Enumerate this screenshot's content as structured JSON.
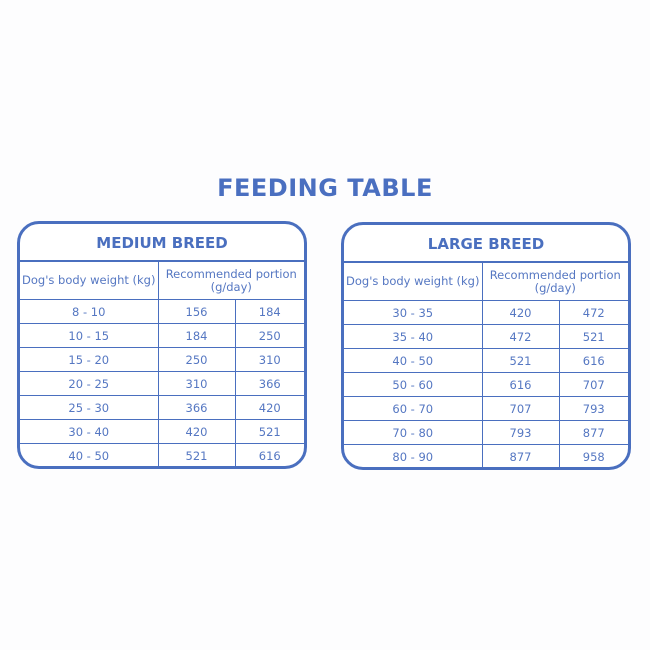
{
  "title": "FEEDING TABLE",
  "colors": {
    "accent": "#4a6fbf",
    "background": "#fdfdfe"
  },
  "medium": {
    "title": "MEDIUM BREED",
    "header_weight": "Dog's body weight (kg)",
    "header_portion": "Recommended portion (g/day)",
    "rows": [
      [
        "8 - 10",
        "156",
        "184"
      ],
      [
        "10 - 15",
        "184",
        "250"
      ],
      [
        "15 - 20",
        "250",
        "310"
      ],
      [
        "20 - 25",
        "310",
        "366"
      ],
      [
        "25 - 30",
        "366",
        "420"
      ],
      [
        "30 - 40",
        "420",
        "521"
      ],
      [
        "40 - 50",
        "521",
        "616"
      ]
    ]
  },
  "large": {
    "title": "LARGE BREED",
    "header_weight": "Dog's body weight (kg)",
    "header_portion": "Recommended portion (g/day)",
    "rows": [
      [
        "30 - 35",
        "420",
        "472"
      ],
      [
        "35 - 40",
        "472",
        "521"
      ],
      [
        "40 - 50",
        "521",
        "616"
      ],
      [
        "50 - 60",
        "616",
        "707"
      ],
      [
        "60 - 70",
        "707",
        "793"
      ],
      [
        "70 - 80",
        "793",
        "877"
      ],
      [
        "80 - 90",
        "877",
        "958"
      ]
    ]
  }
}
